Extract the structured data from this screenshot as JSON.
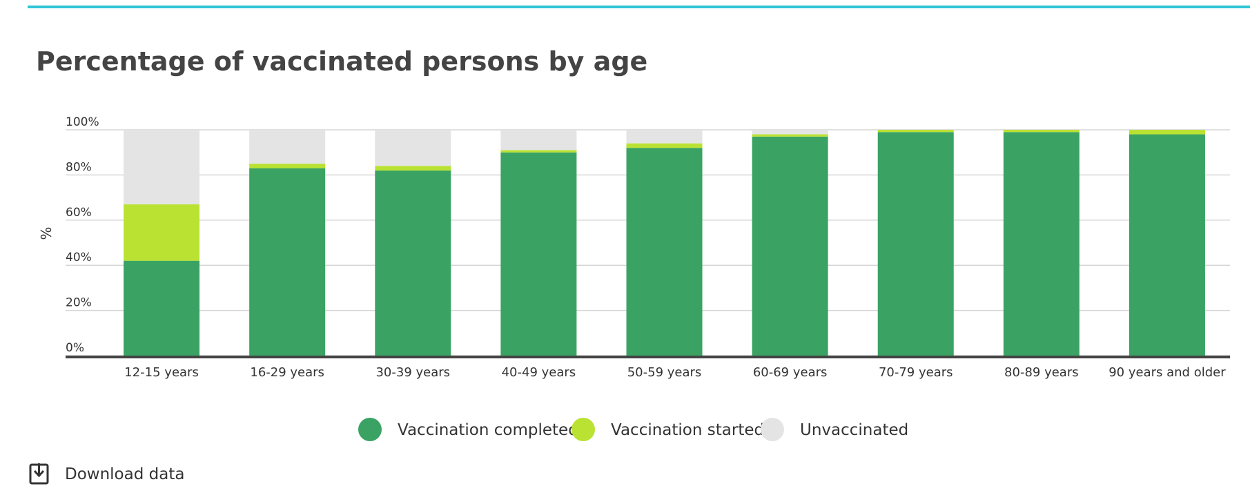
{
  "chart_data": {
    "type": "stacked_bar",
    "title": "Percentage of vaccinated persons by age",
    "y_label": "%",
    "categories": [
      "12-15 years",
      "16-29 years",
      "30-39 years",
      "40-49 years",
      "50-59 years",
      "60-69 years",
      "70-79 years",
      "80-89 years",
      "90 years and older"
    ],
    "series": [
      {
        "name": "Vaccination completed",
        "color": "#3aa363",
        "values": [
          42,
          83,
          82,
          90,
          92,
          97,
          99,
          99,
          98
        ]
      },
      {
        "name": "Vaccination started",
        "color": "#bae232",
        "values": [
          25,
          2,
          2,
          1,
          2,
          1,
          1,
          1,
          2
        ]
      },
      {
        "name": "Unvaccinated",
        "color": "#e4e4e4",
        "values": [
          33,
          15,
          16,
          9,
          6,
          2,
          0,
          0,
          0
        ]
      }
    ],
    "ylim": [
      0,
      100
    ],
    "yticks": [
      {
        "value": 0,
        "label": "0%"
      },
      {
        "value": 20,
        "label": "20%"
      },
      {
        "value": 40,
        "label": "40%"
      },
      {
        "value": 60,
        "label": "60%"
      },
      {
        "value": 80,
        "label": "80%"
      },
      {
        "value": 100,
        "label": "100%"
      }
    ],
    "grid": true,
    "legend": "bottom"
  },
  "download_link": "Download data"
}
